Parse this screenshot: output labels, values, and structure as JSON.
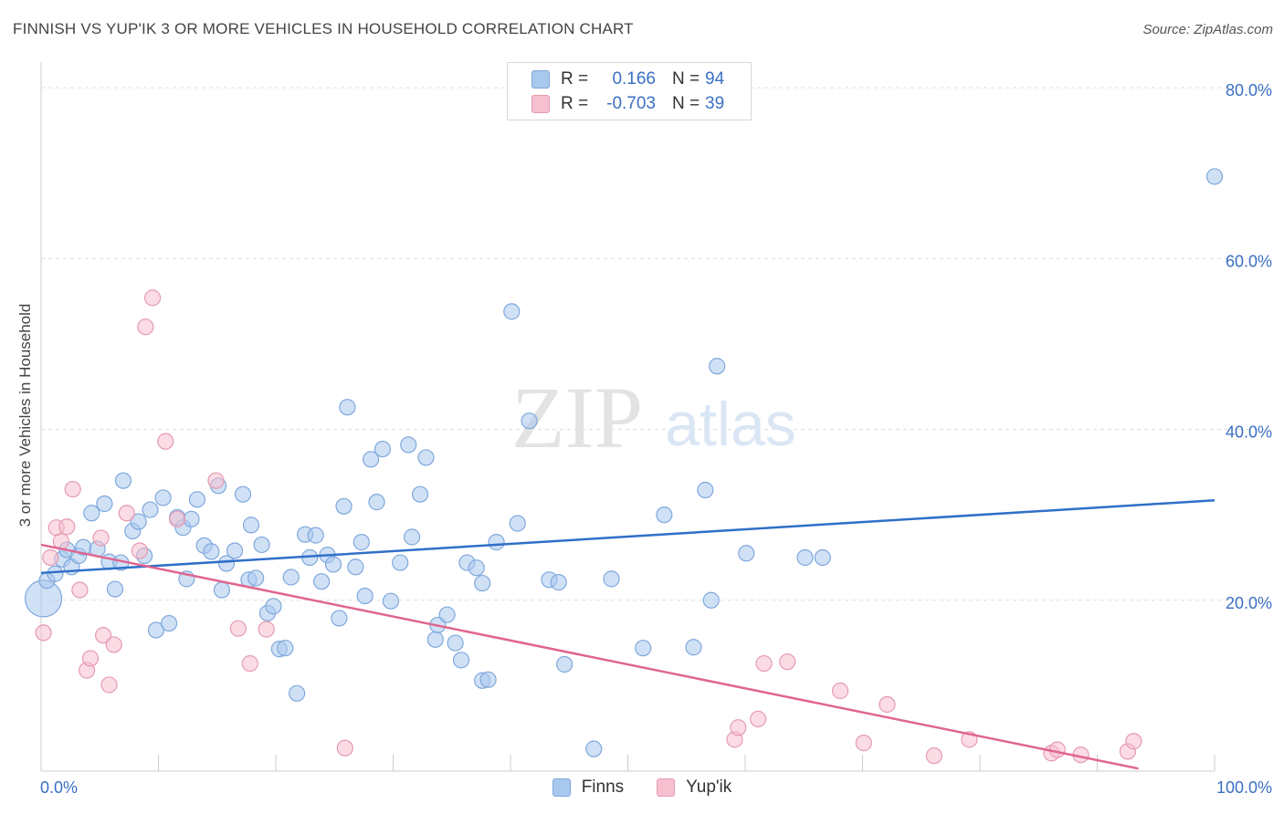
{
  "title": "FINNISH VS YUP'IK 3 OR MORE VEHICLES IN HOUSEHOLD CORRELATION CHART",
  "source": "Source: ZipAtlas.com",
  "watermark": {
    "zip": "ZIP",
    "atlas": "atlas"
  },
  "legend": {
    "rows": [
      {
        "r_label": "R =",
        "r_value": "0.166",
        "n_label": "N =",
        "n_value": "94",
        "color": "#a9c8ee",
        "stroke": "#7fa8dc"
      },
      {
        "r_label": "R =",
        "r_value": "-0.703",
        "n_label": "N =",
        "n_value": "39",
        "color": "#f7c0d0",
        "stroke": "#e59ab1"
      }
    ]
  },
  "bottom_legend": [
    {
      "label": "Finns",
      "color": "#a9c8ee",
      "stroke": "#7fa8dc"
    },
    {
      "label": "Yup'ik",
      "color": "#f7c0d0",
      "stroke": "#e59ab1"
    }
  ],
  "chart_data": {
    "type": "scatter",
    "title": "FINNISH VS YUP'IK 3 OR MORE VEHICLES IN HOUSEHOLD CORRELATION CHART",
    "xlabel": "",
    "ylabel": "3 or more Vehicles in Household",
    "xlim": [
      0,
      100
    ],
    "ylim": [
      0,
      83
    ],
    "x_tick_labels": [
      "0.0%",
      "100.0%"
    ],
    "y_ticks": [
      20,
      40,
      60,
      80
    ],
    "y_tick_labels": [
      "20.0%",
      "40.0%",
      "60.0%",
      "80.0%"
    ],
    "grid": true,
    "series": [
      {
        "name": "Finns",
        "color": "#a9c8ee",
        "stroke": "#7fa8dc",
        "line_color": "#2f6fc9",
        "trend": [
          [
            0,
            23.2
          ],
          [
            100,
            31.7
          ]
        ],
        "points": [
          [
            0.2,
            20.2,
            "big"
          ],
          [
            0.5,
            22.3
          ],
          [
            1.2,
            23.1
          ],
          [
            1.8,
            24.8
          ],
          [
            2.2,
            25.9
          ],
          [
            2.6,
            23.9
          ],
          [
            3.2,
            25.2
          ],
          [
            3.6,
            26.2
          ],
          [
            4.3,
            30.2
          ],
          [
            4.8,
            26.0
          ],
          [
            5.4,
            31.3
          ],
          [
            5.8,
            24.5
          ],
          [
            6.3,
            21.3
          ],
          [
            6.8,
            24.4
          ],
          [
            7.0,
            34.0
          ],
          [
            7.8,
            28.1
          ],
          [
            8.3,
            29.2
          ],
          [
            8.8,
            25.2
          ],
          [
            9.3,
            30.6
          ],
          [
            9.8,
            16.5
          ],
          [
            10.4,
            32.0
          ],
          [
            10.9,
            17.3
          ],
          [
            11.6,
            29.7
          ],
          [
            12.1,
            28.5
          ],
          [
            12.4,
            22.5
          ],
          [
            12.8,
            29.5
          ],
          [
            13.3,
            31.8
          ],
          [
            13.9,
            26.4
          ],
          [
            14.5,
            25.7
          ],
          [
            15.1,
            33.4
          ],
          [
            15.4,
            21.2
          ],
          [
            15.8,
            24.3
          ],
          [
            16.5,
            25.8
          ],
          [
            17.2,
            32.4
          ],
          [
            17.7,
            22.4
          ],
          [
            17.9,
            28.8
          ],
          [
            18.3,
            22.6
          ],
          [
            18.8,
            26.5
          ],
          [
            19.3,
            18.5
          ],
          [
            19.8,
            19.3
          ],
          [
            20.3,
            14.3
          ],
          [
            20.8,
            14.4
          ],
          [
            21.3,
            22.7
          ],
          [
            21.8,
            9.1
          ],
          [
            22.5,
            27.7
          ],
          [
            22.9,
            25.0
          ],
          [
            23.4,
            27.6
          ],
          [
            23.9,
            22.2
          ],
          [
            24.4,
            25.3
          ],
          [
            24.9,
            24.2
          ],
          [
            25.4,
            17.9
          ],
          [
            25.8,
            31.0
          ],
          [
            26.1,
            42.6
          ],
          [
            26.8,
            23.9
          ],
          [
            27.3,
            26.8
          ],
          [
            27.6,
            20.5
          ],
          [
            28.1,
            36.5
          ],
          [
            28.6,
            31.5
          ],
          [
            29.1,
            37.7
          ],
          [
            29.8,
            19.9
          ],
          [
            30.6,
            24.4
          ],
          [
            31.3,
            38.2
          ],
          [
            31.6,
            27.4
          ],
          [
            32.3,
            32.4
          ],
          [
            32.8,
            36.7
          ],
          [
            33.6,
            15.4
          ],
          [
            33.8,
            17.1
          ],
          [
            34.6,
            18.3
          ],
          [
            35.3,
            15.0
          ],
          [
            35.8,
            13.0
          ],
          [
            36.3,
            24.4
          ],
          [
            37.1,
            23.8
          ],
          [
            37.6,
            22.0
          ],
          [
            37.6,
            10.6
          ],
          [
            38.1,
            10.7
          ],
          [
            38.8,
            26.8
          ],
          [
            40.1,
            53.8
          ],
          [
            40.6,
            29.0
          ],
          [
            41.6,
            41.0
          ],
          [
            43.3,
            22.4
          ],
          [
            44.1,
            22.1
          ],
          [
            44.6,
            12.5
          ],
          [
            47.1,
            2.6
          ],
          [
            48.6,
            22.5
          ],
          [
            51.3,
            14.4
          ],
          [
            53.1,
            30.0
          ],
          [
            55.6,
            14.5
          ],
          [
            56.6,
            32.9
          ],
          [
            57.1,
            20.0
          ],
          [
            57.6,
            47.4
          ],
          [
            60.1,
            25.5
          ],
          [
            65.1,
            25.0
          ],
          [
            66.6,
            25.0
          ],
          [
            100.0,
            69.6
          ]
        ]
      },
      {
        "name": "Yup'ik",
        "color": "#f7c0d0",
        "stroke": "#e59ab1",
        "line_color": "#e06590",
        "trend": [
          [
            0,
            26.5
          ],
          [
            93.5,
            0.3
          ]
        ],
        "points": [
          [
            0.2,
            16.2
          ],
          [
            0.8,
            25.0
          ],
          [
            1.3,
            28.5
          ],
          [
            1.7,
            26.9
          ],
          [
            2.2,
            28.6
          ],
          [
            2.7,
            33.0
          ],
          [
            3.3,
            21.2
          ],
          [
            3.9,
            11.8
          ],
          [
            4.2,
            13.2
          ],
          [
            5.1,
            27.3
          ],
          [
            5.3,
            15.9
          ],
          [
            5.8,
            10.1
          ],
          [
            6.2,
            14.8
          ],
          [
            7.3,
            30.2
          ],
          [
            8.4,
            25.8
          ],
          [
            8.9,
            52.0
          ],
          [
            9.5,
            55.4
          ],
          [
            10.6,
            38.6
          ],
          [
            11.6,
            29.5
          ],
          [
            14.9,
            34.0
          ],
          [
            16.8,
            16.7
          ],
          [
            17.8,
            12.6
          ],
          [
            19.2,
            16.6
          ],
          [
            25.9,
            2.7
          ],
          [
            59.1,
            3.7
          ],
          [
            59.4,
            5.1
          ],
          [
            61.1,
            6.1
          ],
          [
            61.6,
            12.6
          ],
          [
            63.6,
            12.8
          ],
          [
            68.1,
            9.4
          ],
          [
            70.1,
            3.3
          ],
          [
            72.1,
            7.8
          ],
          [
            76.1,
            1.8
          ],
          [
            79.1,
            3.7
          ],
          [
            86.1,
            2.1
          ],
          [
            86.6,
            2.5
          ],
          [
            88.6,
            1.9
          ],
          [
            92.6,
            2.3
          ],
          [
            93.1,
            3.5
          ]
        ]
      }
    ]
  }
}
